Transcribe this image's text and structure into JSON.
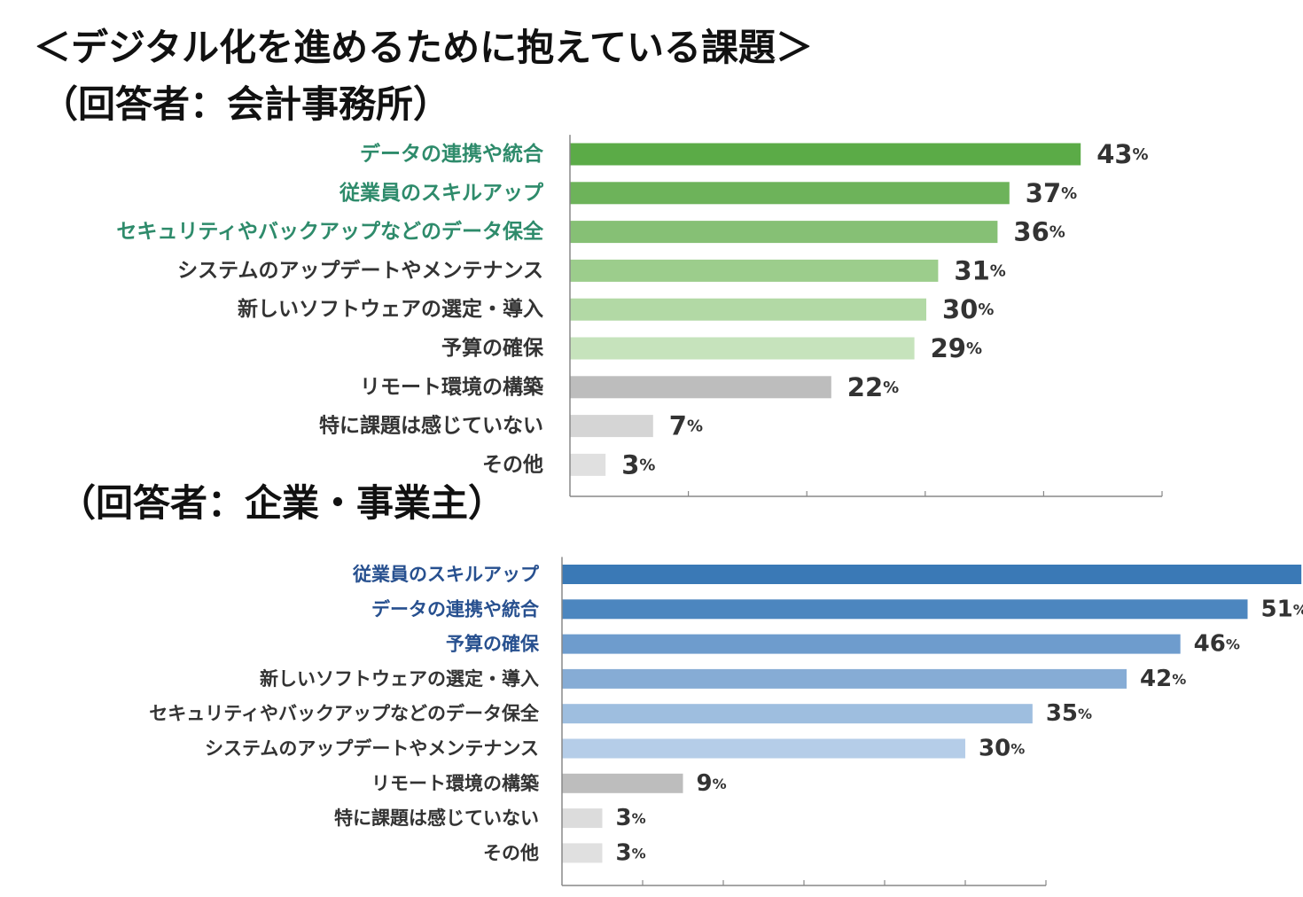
{
  "title": "＜デジタル化を進めるために抱えている課題＞",
  "chart_data": [
    {
      "type": "bar",
      "orientation": "horizontal",
      "subtitle": "（回答者：会計事務所）",
      "unit": "%",
      "xlim": [
        0,
        50
      ],
      "categories": [
        "データの連携や統合",
        "従業員のスキルアップ",
        "セキュリティやバックアップなどのデータ保全",
        "システムのアップデートやメンテナンス",
        "新しいソフトウェアの選定・導入",
        "予算の確保",
        "リモート環境の構築",
        "特に課題は感じていない",
        "その他"
      ],
      "values": [
        43,
        37,
        36,
        31,
        30,
        29,
        22,
        7,
        3
      ],
      "bar_colors": [
        "#5bab47",
        "#6db35a",
        "#86c075",
        "#9ccd8c",
        "#b2d9a5",
        "#c6e3bc",
        "#bdbdbd",
        "#d5d5d5",
        "#e0e0e0"
      ],
      "label_colors": [
        "#2e8b6b",
        "#2e8b6b",
        "#2e8b6b",
        "#333333",
        "#333333",
        "#333333",
        "#333333",
        "#333333",
        "#333333"
      ],
      "grid": false
    },
    {
      "type": "bar",
      "orientation": "horizontal",
      "subtitle": "（回答者：企業・事業主）",
      "unit": "%",
      "xlim": [
        0,
        60
      ],
      "categories": [
        "従業員のスキルアップ",
        "データの連携や統合",
        "予算の確保",
        "新しいソフトウェアの選定・導入",
        "セキュリティやバックアップなどのデータ保全",
        "システムのアップデートやメンテナンス",
        "リモート環境の構築",
        "特に課題は感じていない",
        "その他"
      ],
      "values": [
        55,
        51,
        46,
        42,
        35,
        30,
        9,
        3,
        3
      ],
      "bar_colors": [
        "#3a79b6",
        "#4c86bf",
        "#6e9ccd",
        "#86acd5",
        "#9ebedf",
        "#b5cde8",
        "#bdbdbd",
        "#dcdcdc",
        "#e0e0e0"
      ],
      "label_colors": [
        "#27508f",
        "#27508f",
        "#27508f",
        "#333333",
        "#333333",
        "#333333",
        "#333333",
        "#333333",
        "#333333"
      ],
      "grid": false
    }
  ]
}
